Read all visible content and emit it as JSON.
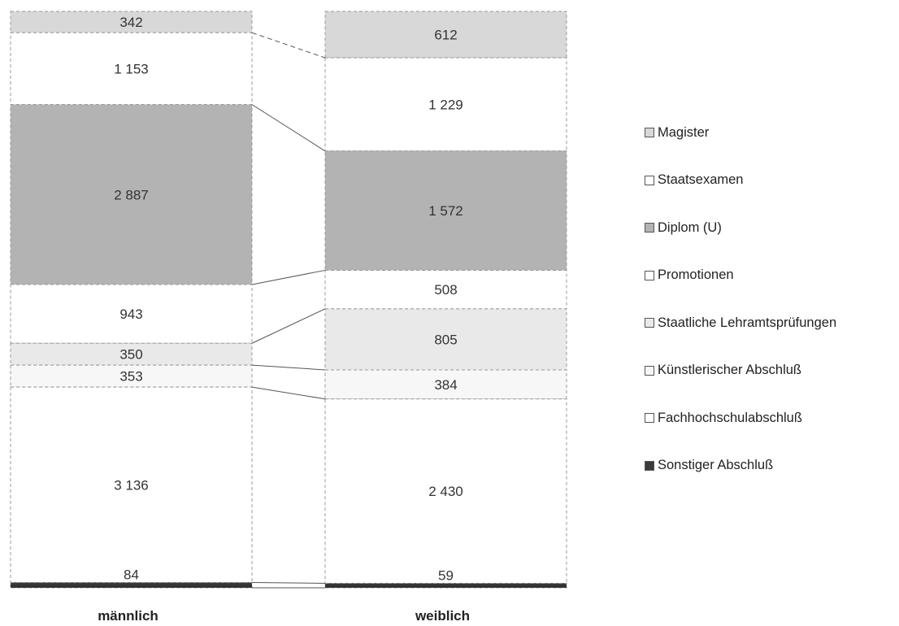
{
  "chart_data": {
    "type": "stacked-bar",
    "categories": [
      "männlich",
      "weiblich"
    ],
    "series": [
      {
        "name": "Magister",
        "values": [
          342,
          612
        ],
        "color": "#d8d8d8"
      },
      {
        "name": "Staatsexamen",
        "values": [
          1153,
          1229
        ],
        "color": "#ffffff"
      },
      {
        "name": "Diplom (U)",
        "values": [
          2887,
          1572
        ],
        "color": "#b3b3b3"
      },
      {
        "name": "Promotionen",
        "values": [
          943,
          508
        ],
        "color": "#ffffff"
      },
      {
        "name": "Staatliche Lehramtsprüfungen",
        "values": [
          350,
          805
        ],
        "color": "#e9e9e9"
      },
      {
        "name": "Künstlerischer Abschluß",
        "values": [
          353,
          384
        ],
        "color": "#f7f7f7"
      },
      {
        "name": "Fachhochschulabschluß",
        "values": [
          3136,
          2430
        ],
        "color": "#ffffff"
      },
      {
        "name": "Sonstiger Abschluß",
        "values": [
          84,
          59
        ],
        "color": "#3a3a3a"
      }
    ],
    "stack_order": "first series at top, last series at bottom",
    "legend_position": "right",
    "connector_lines": true
  }
}
